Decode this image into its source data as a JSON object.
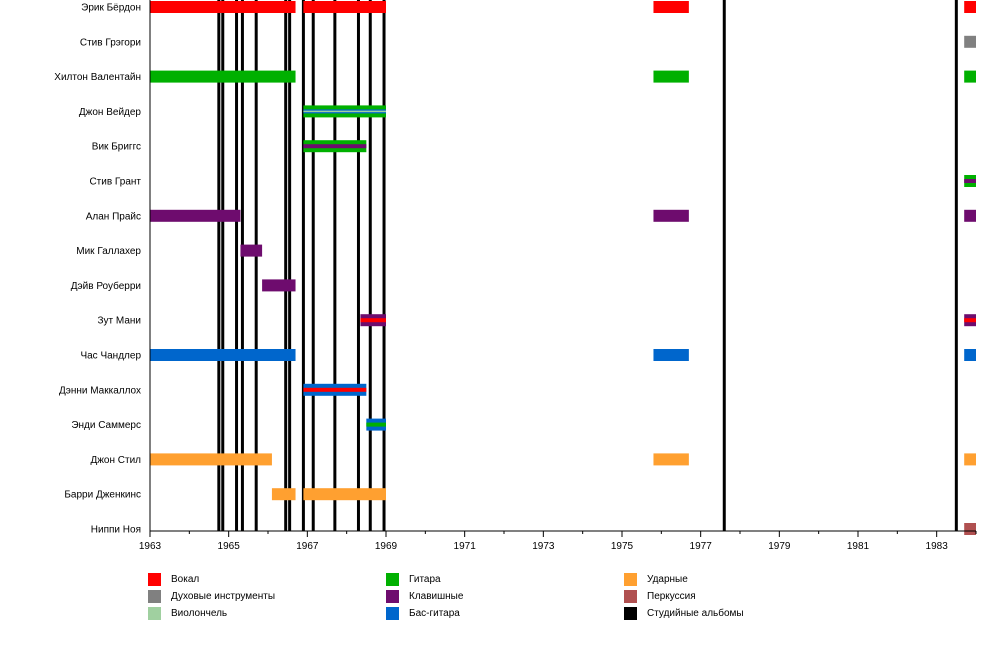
{
  "chart_data": {
    "type": "timeline",
    "xlim": [
      1963,
      1984
    ],
    "x_ticks": [
      1963,
      1965,
      1967,
      1969,
      1971,
      1973,
      1975,
      1977,
      1979,
      1981,
      1983
    ],
    "grid": false,
    "legend_placement": "bottom",
    "roles": [
      {
        "key": "vocals",
        "name": "Вокал",
        "color": "#ff0000"
      },
      {
        "key": "wind",
        "name": "Духовые инструменты",
        "color": "#808080"
      },
      {
        "key": "cello",
        "name": "Виолончель",
        "color": "#a0d0a0"
      },
      {
        "key": "guitar",
        "name": "Гитара",
        "color": "#00b000"
      },
      {
        "key": "keys",
        "name": "Клавишные",
        "color": "#6e0c6e"
      },
      {
        "key": "bass",
        "name": "Бас-гитара",
        "color": "#0066cc"
      },
      {
        "key": "drums",
        "name": "Ударные",
        "color": "#ffa030"
      },
      {
        "key": "perc",
        "name": "Перкуссия",
        "color": "#b05050"
      },
      {
        "key": "albums",
        "name": "Студийные альбомы",
        "color": "#000000"
      }
    ],
    "members": [
      {
        "name": "Эрик Бёрдон",
        "bars": [
          {
            "start": 1963.0,
            "end": 1966.7,
            "roles": [
              "vocals"
            ]
          },
          {
            "start": 1966.9,
            "end": 1969.0,
            "roles": [
              "vocals"
            ]
          },
          {
            "start": 1975.8,
            "end": 1976.7,
            "roles": [
              "vocals"
            ]
          },
          {
            "start": 1983.7,
            "end": 1984.0,
            "roles": [
              "vocals"
            ]
          }
        ]
      },
      {
        "name": "Стив Грэгори",
        "bars": [
          {
            "start": 1983.7,
            "end": 1984.0,
            "roles": [
              "wind"
            ]
          }
        ]
      },
      {
        "name": "Хилтон Валентайн",
        "bars": [
          {
            "start": 1963.0,
            "end": 1966.7,
            "roles": [
              "guitar"
            ]
          },
          {
            "start": 1975.8,
            "end": 1976.7,
            "roles": [
              "guitar"
            ]
          },
          {
            "start": 1983.7,
            "end": 1984.0,
            "roles": [
              "guitar"
            ]
          }
        ]
      },
      {
        "name": "Джон Вейдер",
        "bars": [
          {
            "start": 1966.9,
            "end": 1969.0,
            "roles": [
              "guitar",
              "bass",
              "cello"
            ]
          }
        ]
      },
      {
        "name": "Вик Бриггс",
        "bars": [
          {
            "start": 1966.9,
            "end": 1968.5,
            "roles": [
              "guitar",
              "keys"
            ]
          }
        ]
      },
      {
        "name": "Стив Грант",
        "bars": [
          {
            "start": 1983.7,
            "end": 1984.0,
            "roles": [
              "guitar",
              "keys"
            ]
          }
        ]
      },
      {
        "name": "Алан Прайс",
        "bars": [
          {
            "start": 1963.0,
            "end": 1965.3,
            "roles": [
              "keys"
            ]
          },
          {
            "start": 1975.8,
            "end": 1976.7,
            "roles": [
              "keys"
            ]
          },
          {
            "start": 1983.7,
            "end": 1984.0,
            "roles": [
              "keys"
            ]
          }
        ]
      },
      {
        "name": "Мик Галлахер",
        "bars": [
          {
            "start": 1965.3,
            "end": 1965.85,
            "roles": [
              "keys"
            ]
          }
        ]
      },
      {
        "name": "Дэйв Роуберри",
        "bars": [
          {
            "start": 1965.85,
            "end": 1966.7,
            "roles": [
              "keys"
            ]
          }
        ]
      },
      {
        "name": "Зут Мани",
        "bars": [
          {
            "start": 1968.35,
            "end": 1969.0,
            "roles": [
              "keys",
              "vocals"
            ]
          },
          {
            "start": 1983.7,
            "end": 1984.0,
            "roles": [
              "keys",
              "vocals"
            ]
          }
        ]
      },
      {
        "name": "Час Чандлер",
        "bars": [
          {
            "start": 1963.0,
            "end": 1966.7,
            "roles": [
              "bass"
            ]
          },
          {
            "start": 1975.8,
            "end": 1976.7,
            "roles": [
              "bass"
            ]
          },
          {
            "start": 1983.7,
            "end": 1984.0,
            "roles": [
              "bass"
            ]
          }
        ]
      },
      {
        "name": "Дэнни Маккаллох",
        "bars": [
          {
            "start": 1966.9,
            "end": 1968.5,
            "roles": [
              "bass",
              "vocals"
            ]
          }
        ]
      },
      {
        "name": "Энди Саммерс",
        "bars": [
          {
            "start": 1968.5,
            "end": 1969.0,
            "roles": [
              "bass",
              "guitar"
            ]
          }
        ]
      },
      {
        "name": "Джон Стил",
        "bars": [
          {
            "start": 1963.0,
            "end": 1966.1,
            "roles": [
              "drums"
            ]
          },
          {
            "start": 1975.8,
            "end": 1976.7,
            "roles": [
              "drums"
            ]
          },
          {
            "start": 1983.7,
            "end": 1984.0,
            "roles": [
              "drums"
            ]
          }
        ]
      },
      {
        "name": "Барри Дженкинс",
        "bars": [
          {
            "start": 1966.1,
            "end": 1966.7,
            "roles": [
              "drums"
            ]
          },
          {
            "start": 1966.9,
            "end": 1969.0,
            "roles": [
              "drums"
            ]
          }
        ]
      },
      {
        "name": "Ниппи Ноя",
        "bars": [
          {
            "start": 1983.7,
            "end": 1984.0,
            "roles": [
              "perc"
            ]
          }
        ]
      }
    ],
    "albums": [
      1964.75,
      1964.85,
      1965.2,
      1965.35,
      1965.7,
      1966.45,
      1966.55,
      1966.9,
      1967.15,
      1967.7,
      1968.3,
      1968.6,
      1968.95,
      1977.6,
      1983.5
    ]
  }
}
